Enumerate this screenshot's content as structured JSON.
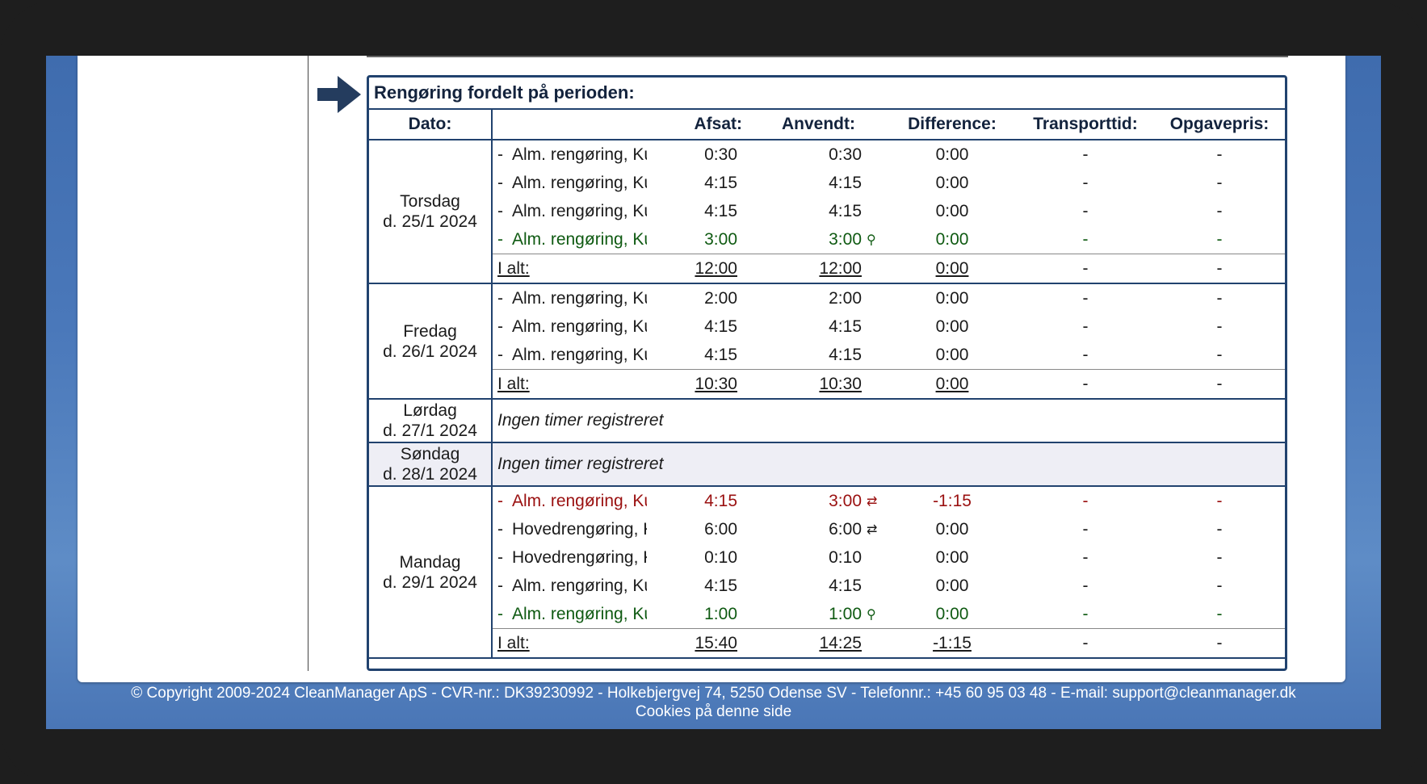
{
  "section_title": "Rengøring fordelt på perioden:",
  "headers": {
    "date": "Dato:",
    "desc": "",
    "allocated": "Afsat:",
    "used": "Anvendt:",
    "difference": "Difference:",
    "transport": "Transporttid:",
    "price": "Opgavepris:"
  },
  "days": [
    {
      "weekday": "Torsdag",
      "date": "d. 25/1 2024",
      "rows": [
        {
          "desc": "Alm. rengøring, Ku",
          "allocated": "0:30",
          "used": "0:30",
          "difference": "0:00",
          "transport": "-",
          "price": "-",
          "style": "normal",
          "icon": ""
        },
        {
          "desc": "Alm. rengøring, Ku",
          "allocated": "4:15",
          "used": "4:15",
          "difference": "0:00",
          "transport": "-",
          "price": "-",
          "style": "normal",
          "icon": ""
        },
        {
          "desc": "Alm. rengøring, Ku",
          "allocated": "4:15",
          "used": "4:15",
          "difference": "0:00",
          "transport": "-",
          "price": "-",
          "style": "normal",
          "icon": ""
        },
        {
          "desc": "Alm. rengøring, Ku",
          "allocated": "3:00",
          "used": "3:00",
          "difference": "0:00",
          "transport": "-",
          "price": "-",
          "style": "green",
          "icon": "person"
        }
      ],
      "total": {
        "label": "I alt:",
        "allocated": "12:00",
        "used": "12:00",
        "difference": "0:00",
        "transport": "-",
        "price": "-"
      }
    },
    {
      "weekday": "Fredag",
      "date": "d. 26/1 2024",
      "rows": [
        {
          "desc": "Alm. rengøring, Ku",
          "allocated": "2:00",
          "used": "2:00",
          "difference": "0:00",
          "transport": "-",
          "price": "-",
          "style": "normal",
          "icon": ""
        },
        {
          "desc": "Alm. rengøring, Ku",
          "allocated": "4:15",
          "used": "4:15",
          "difference": "0:00",
          "transport": "-",
          "price": "-",
          "style": "normal",
          "icon": ""
        },
        {
          "desc": "Alm. rengøring, Ku",
          "allocated": "4:15",
          "used": "4:15",
          "difference": "0:00",
          "transport": "-",
          "price": "-",
          "style": "normal",
          "icon": ""
        }
      ],
      "total": {
        "label": "I alt:",
        "allocated": "10:30",
        "used": "10:30",
        "difference": "0:00",
        "transport": "-",
        "price": "-"
      }
    },
    {
      "weekday": "Lørdag",
      "date": "d. 27/1 2024",
      "empty": "Ingen timer registreret"
    },
    {
      "weekday": "Søndag",
      "date": "d. 28/1 2024",
      "empty": "Ingen timer registreret"
    },
    {
      "weekday": "Mandag",
      "date": "d. 29/1 2024",
      "rows": [
        {
          "desc": "Alm. rengøring, Ku",
          "allocated": "4:15",
          "used": "3:00",
          "difference": "-1:15",
          "transport": "-",
          "price": "-",
          "style": "red",
          "icon": "swap"
        },
        {
          "desc": "Hovedrengøring, K",
          "allocated": "6:00",
          "used": "6:00",
          "difference": "0:00",
          "transport": "-",
          "price": "-",
          "style": "normal",
          "icon": "swap"
        },
        {
          "desc": "Hovedrengøring, K",
          "allocated": "0:10",
          "used": "0:10",
          "difference": "0:00",
          "transport": "-",
          "price": "-",
          "style": "normal",
          "icon": ""
        },
        {
          "desc": "Alm. rengøring, Ku",
          "allocated": "4:15",
          "used": "4:15",
          "difference": "0:00",
          "transport": "-",
          "price": "-",
          "style": "normal",
          "icon": ""
        },
        {
          "desc": "Alm. rengøring, Ku",
          "allocated": "1:00",
          "used": "1:00",
          "difference": "0:00",
          "transport": "-",
          "price": "-",
          "style": "green",
          "icon": "person"
        }
      ],
      "total": {
        "label": "I alt:",
        "allocated": "15:40",
        "used": "14:25",
        "difference": "-1:15",
        "transport": "-",
        "price": "-"
      }
    }
  ],
  "footer": {
    "line1": "© Copyright 2009-2024 CleanManager ApS - CVR-nr.: DK39230992 - Holkebjergvej 74, 5250 Odense SV - Telefonnr.: +45 60 95 03 48 - E-mail: support@cleanmanager.dk",
    "line2": "Cookies på denne side"
  },
  "colors": {
    "border": "#21426e",
    "green": "#0f5a12",
    "red": "#9a1010",
    "sunday_bg": "#eeeef5"
  }
}
